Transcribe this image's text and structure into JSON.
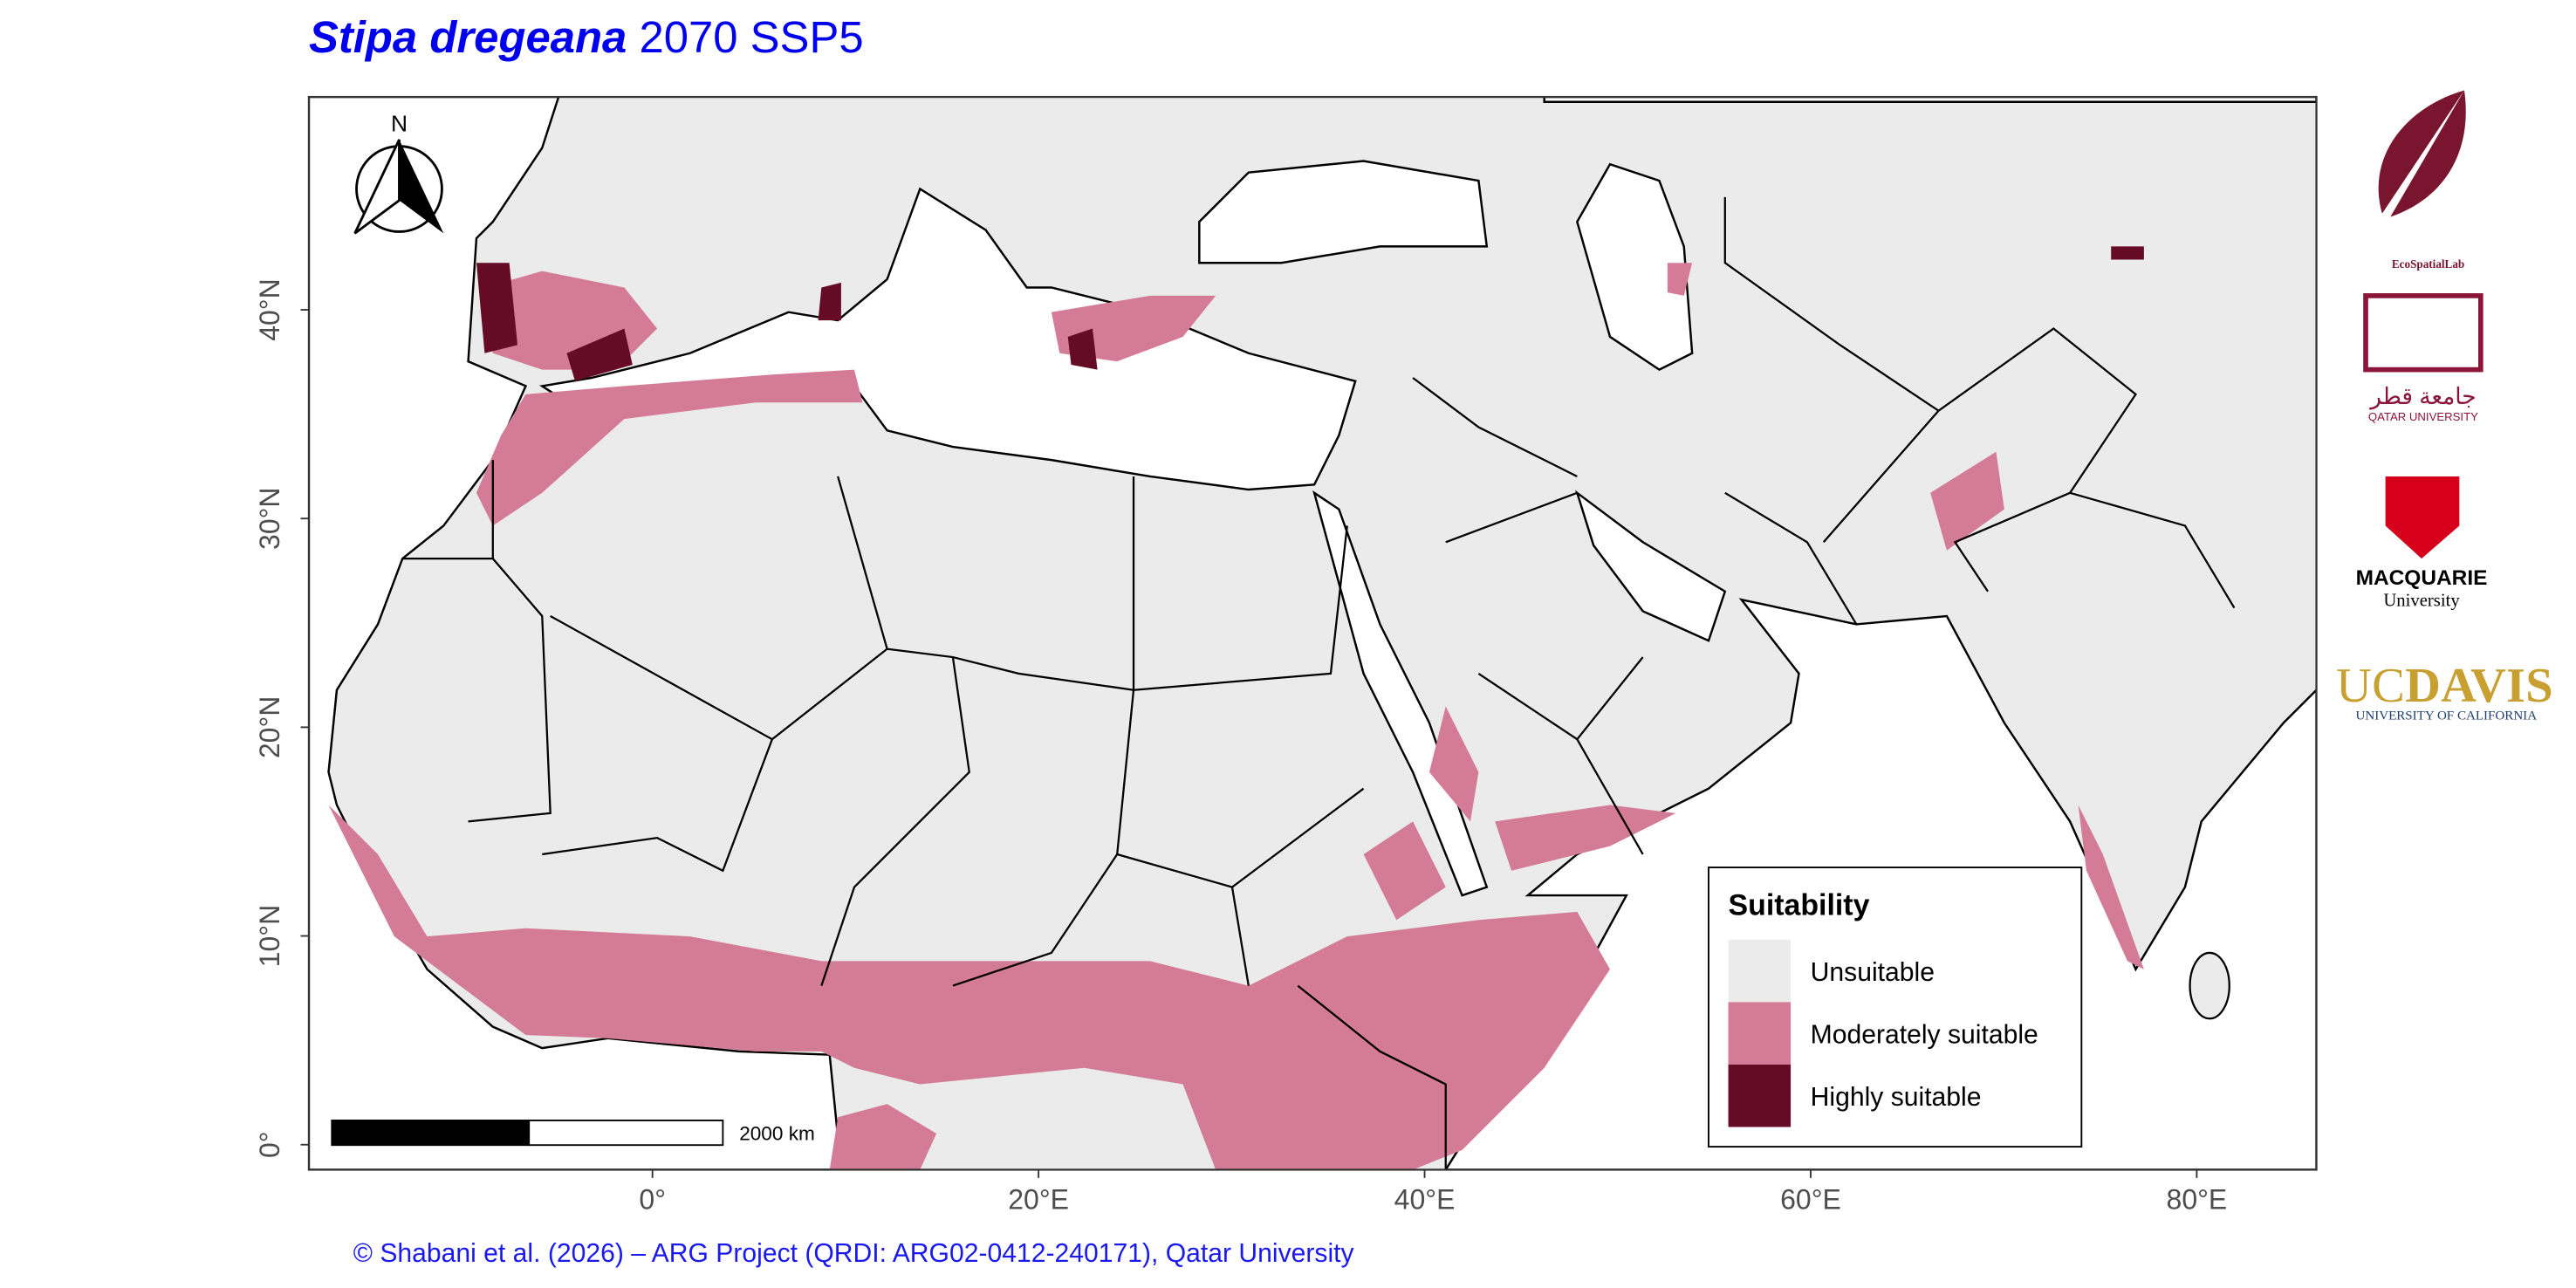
{
  "title": {
    "species": "Stipa dregeana",
    "scenario": "2070 SSP5"
  },
  "map": {
    "xlim": [
      -17.8,
      86.2
    ],
    "ylim": [
      -1.2,
      50.2
    ],
    "xticks": [
      {
        "value": 0,
        "label": "0°"
      },
      {
        "value": 20,
        "label": "20°E"
      },
      {
        "value": 40,
        "label": "40°E"
      },
      {
        "value": 60,
        "label": "60°E"
      },
      {
        "value": 80,
        "label": "80°E"
      }
    ],
    "yticks": [
      {
        "value": 0,
        "label": "0°"
      },
      {
        "value": 10,
        "label": "10°N"
      },
      {
        "value": 20,
        "label": "20°N"
      },
      {
        "value": 30,
        "label": "30°N"
      },
      {
        "value": 40,
        "label": "40°N"
      }
    ],
    "north_label": "N",
    "scale_bar_label": "2000 km"
  },
  "legend": {
    "title": "Suitability",
    "items": [
      {
        "label": "Unsuitable",
        "color": "#ebebeb"
      },
      {
        "label": "Moderately suitable",
        "color": "#d47b98"
      },
      {
        "label": "Highly suitable",
        "color": "#650b26"
      }
    ]
  },
  "logos": {
    "ecospatial": "EcoSpatialLab",
    "qatar_arabic": "جامعة قطر",
    "qatar": "QATAR UNIVERSITY",
    "macquarie": "MACQUARIE",
    "macquarie_sub": "University",
    "ucdavis_uc": "UC",
    "ucdavis_davis": "DAVIS",
    "ucdavis_sub": "UNIVERSITY OF CALIFORNIA"
  },
  "credit": "© Shabani et al. (2026) – ARG Project (QRDI: ARG02-0412-240171), Qatar University"
}
